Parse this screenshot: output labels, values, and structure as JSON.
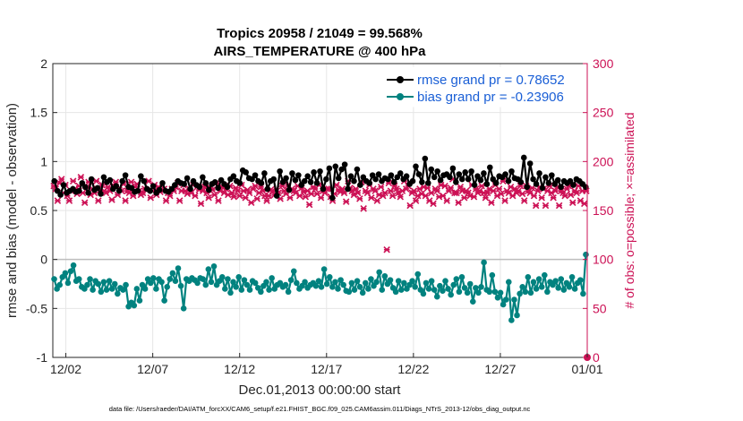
{
  "chart_data": {
    "type": "line",
    "title_line1": "Tropics 20958 / 21049 = 99.568%",
    "title_line2": "AIRS_TEMPERATURE @ 400 hPa",
    "xlabel": "Dec.01,2013 00:00:00 start",
    "ylabel_left": "rmse and bias (model - observation)",
    "ylabel_right": "# of obs: o=possible; ×=assimilated",
    "footnote": "data file: /Users/raeder/DAI/ATM_forcXX/CAM6_setup/f.e21.FHIST_BGC.f09_025.CAM6assim.011/Diags_NTrS_2013-12/obs_diag_output.nc",
    "x_range": [
      0.25,
      31.0
    ],
    "x_ticks": [
      {
        "value": 1.0,
        "label": "12/02"
      },
      {
        "value": 6.0,
        "label": "12/07"
      },
      {
        "value": 11.0,
        "label": "12/12"
      },
      {
        "value": 16.0,
        "label": "12/17"
      },
      {
        "value": 21.0,
        "label": "12/22"
      },
      {
        "value": 26.0,
        "label": "12/27"
      },
      {
        "value": 31.0,
        "label": "01/01"
      }
    ],
    "ylim_left": [
      -1,
      2
    ],
    "y_ticks_left": [
      {
        "value": -1,
        "label": "-1"
      },
      {
        "value": -0.5,
        "label": "-0.5"
      },
      {
        "value": 0,
        "label": "0"
      },
      {
        "value": 0.5,
        "label": "0.5"
      },
      {
        "value": 1,
        "label": "1"
      },
      {
        "value": 1.5,
        "label": "1.5"
      },
      {
        "value": 2,
        "label": "2"
      }
    ],
    "ylim_right": [
      0,
      300
    ],
    "y_ticks_right": [
      {
        "value": 0,
        "label": "0"
      },
      {
        "value": 50,
        "label": "50"
      },
      {
        "value": 100,
        "label": "100"
      },
      {
        "value": 150,
        "label": "150"
      },
      {
        "value": 200,
        "label": "200"
      },
      {
        "value": 250,
        "label": "250"
      },
      {
        "value": 300,
        "label": "300"
      }
    ],
    "grid": true,
    "legend_position": "top-right",
    "series": [
      {
        "name": "rmse grand pr = 0.78652",
        "axis": "left",
        "color": "#000000",
        "values": [
          0.8,
          0.7,
          0.66,
          0.76,
          0.68,
          0.7,
          0.72,
          0.69,
          0.7,
          0.78,
          0.74,
          0.68,
          0.82,
          0.71,
          0.73,
          0.67,
          0.84,
          0.79,
          0.81,
          0.72,
          0.75,
          0.7,
          0.8,
          0.86,
          0.74,
          0.73,
          0.69,
          0.7,
          0.85,
          0.8,
          0.72,
          0.7,
          0.75,
          0.68,
          0.71,
          0.78,
          0.7,
          0.69,
          0.72,
          0.76,
          0.8,
          0.78,
          0.77,
          0.83,
          0.72,
          0.8,
          0.76,
          0.74,
          0.84,
          0.78,
          0.71,
          0.77,
          0.79,
          0.73,
          0.81,
          0.77,
          0.74,
          0.82,
          0.85,
          0.8,
          0.78,
          0.91,
          0.89,
          0.83,
          0.82,
          0.86,
          0.8,
          0.78,
          0.88,
          0.72,
          0.8,
          0.82,
          0.65,
          0.9,
          0.79,
          0.83,
          0.71,
          0.88,
          0.81,
          0.86,
          0.76,
          0.8,
          0.85,
          0.79,
          0.89,
          0.78,
          0.9,
          0.72,
          0.82,
          0.93,
          0.63,
          0.95,
          0.83,
          0.92,
          0.97,
          0.72,
          0.85,
          0.8,
          0.92,
          0.76,
          0.84,
          0.8,
          0.78,
          0.86,
          0.82,
          0.87,
          0.8,
          0.83,
          0.82,
          0.86,
          0.79,
          0.84,
          0.88,
          0.82,
          0.85,
          0.77,
          0.8,
          0.95,
          0.87,
          0.79,
          1.03,
          0.78,
          0.92,
          0.84,
          0.9,
          0.81,
          0.86,
          0.87,
          0.84,
          0.93,
          0.79,
          0.87,
          0.82,
          0.89,
          0.82,
          0.9,
          0.76,
          0.85,
          0.81,
          0.88,
          0.77,
          0.94,
          0.82,
          0.78,
          0.85,
          0.84,
          0.87,
          0.8,
          0.9,
          0.83,
          0.82,
          0.79,
          1.04,
          0.74,
          0.98,
          0.82,
          0.77,
          0.88,
          0.73,
          0.84,
          0.78,
          0.86,
          0.77,
          0.81,
          0.74,
          0.8,
          0.78,
          0.8,
          0.76,
          0.82,
          0.8,
          0.77,
          0.74
        ]
      },
      {
        "name": "bias grand pr = -0.23906",
        "axis": "left",
        "color": "#00827f",
        "values": [
          -0.2,
          -0.3,
          -0.26,
          -0.18,
          -0.14,
          -0.24,
          -0.12,
          -0.06,
          -0.22,
          -0.2,
          -0.28,
          -0.3,
          -0.26,
          -0.2,
          -0.31,
          -0.22,
          -0.25,
          -0.33,
          -0.23,
          -0.31,
          -0.22,
          -0.3,
          -0.25,
          -0.35,
          -0.29,
          -0.31,
          -0.26,
          -0.48,
          -0.44,
          -0.47,
          -0.3,
          -0.42,
          -0.26,
          -0.3,
          -0.2,
          -0.24,
          -0.19,
          -0.3,
          -0.2,
          -0.23,
          -0.42,
          -0.28,
          -0.2,
          -0.14,
          -0.22,
          -0.09,
          -0.27,
          -0.5,
          -0.2,
          -0.22,
          -0.19,
          -0.21,
          -0.24,
          -0.19,
          -0.2,
          -0.26,
          -0.1,
          -0.23,
          -0.07,
          -0.26,
          -0.22,
          -0.18,
          -0.3,
          -0.2,
          -0.34,
          -0.23,
          -0.28,
          -0.18,
          -0.31,
          -0.21,
          -0.26,
          -0.31,
          -0.22,
          -0.24,
          -0.29,
          -0.33,
          -0.27,
          -0.23,
          -0.31,
          -0.19,
          -0.3,
          -0.26,
          -0.24,
          -0.28,
          -0.26,
          -0.33,
          -0.21,
          -0.12,
          -0.24,
          -0.3,
          -0.27,
          -0.23,
          -0.29,
          -0.26,
          -0.24,
          -0.27,
          -0.22,
          -0.28,
          -0.1,
          -0.25,
          -0.18,
          -0.28,
          -0.23,
          -0.3,
          -0.21,
          -0.26,
          -0.32,
          -0.33,
          -0.24,
          -0.31,
          -0.22,
          -0.28,
          -0.34,
          -0.24,
          -0.3,
          -0.2,
          -0.27,
          -0.23,
          -0.13,
          -0.31,
          -0.17,
          -0.25,
          -0.21,
          -0.29,
          -0.33,
          -0.22,
          -0.31,
          -0.24,
          -0.3,
          -0.26,
          -0.22,
          -0.28,
          -0.15,
          -0.31,
          -0.35,
          -0.24,
          -0.3,
          -0.22,
          -0.31,
          -0.38,
          -0.27,
          -0.32,
          -0.22,
          -0.3,
          -0.36,
          -0.26,
          -0.2,
          -0.33,
          -0.18,
          -0.29,
          -0.34,
          -0.25,
          -0.43,
          -0.29,
          -0.34,
          -0.28,
          -0.03,
          -0.31,
          -0.33,
          -0.16,
          -0.33,
          -0.39,
          -0.34,
          -0.46,
          -0.41,
          -0.23,
          -0.62,
          -0.41,
          -0.57,
          -0.35,
          -0.28,
          -0.33,
          -0.18,
          -0.34,
          -0.23,
          -0.3,
          -0.2,
          -0.28,
          -0.16,
          -0.33,
          -0.23,
          -0.26,
          -0.22,
          -0.29,
          -0.2,
          -0.31,
          -0.24,
          -0.28,
          -0.18,
          -0.3,
          -0.24,
          -0.21,
          -0.35,
          0.05
        ]
      },
      {
        "name": "assimilated",
        "axis": "right",
        "color": "#cc1155",
        "marker": "x",
        "values": [
          175,
          172,
          160,
          178,
          182,
          168,
          176,
          165,
          160,
          170,
          180,
          172,
          167,
          175,
          184,
          168,
          158,
          174,
          179,
          166,
          172,
          168,
          180,
          160,
          171,
          176,
          170,
          168,
          174,
          170,
          161,
          175,
          179,
          166,
          173,
          170,
          177,
          160,
          170,
          168,
          179,
          165,
          174,
          177,
          170,
          166,
          168,
          172,
          171,
          180,
          163,
          170,
          176,
          166,
          174,
          169,
          171,
          172,
          160,
          168,
          165,
          172,
          170,
          174,
          178,
          160,
          170,
          176,
          170,
          167,
          172,
          168,
          176,
          165,
          174,
          171,
          157,
          170,
          174,
          168,
          163,
          173,
          171,
          166,
          178,
          160,
          170,
          174,
          168,
          172,
          166,
          175,
          168,
          164,
          173,
          170,
          165,
          176,
          170,
          163,
          171,
          168,
          158,
          172,
          175,
          162,
          168,
          174,
          170,
          165,
          160,
          165,
          171,
          170,
          166,
          172,
          168,
          162,
          175,
          170,
          167,
          176,
          163,
          172,
          170,
          168,
          175,
          165,
          173,
          169,
          164,
          170,
          156,
          167,
          174,
          172,
          167,
          176,
          163,
          170,
          168,
          172,
          172,
          164,
          160,
          167,
          176,
          171,
          169,
          172,
          168,
          159,
          180,
          173,
          170,
          166,
          172,
          168,
          162,
          179,
          152,
          170,
          168,
          176,
          163,
          172,
          170,
          160,
          166,
          174,
          165,
          168,
          110,
          178,
          170,
          165,
          175,
          172,
          168,
          164,
          170,
          180,
          172,
          175,
          155,
          168,
          170,
          160,
          165,
          172,
          167,
          174,
          165,
          173,
          160,
          168,
          157,
          172,
          170,
          164,
          176,
          165,
          175,
          160,
          170,
          173,
          182,
          168,
          168,
          158,
          174,
          170,
          163,
          170,
          168,
          165,
          176,
          164,
          172,
          168,
          170,
          175,
          168,
          163,
          168,
          172,
          158,
          170,
          176,
          165,
          172,
          167,
          180,
          160,
          170,
          168,
          174,
          165,
          172,
          168,
          170,
          175,
          167,
          160,
          175,
          170,
          168,
          173,
          165,
          155,
          170,
          174,
          163,
          172,
          155,
          170,
          175,
          168,
          163,
          170,
          174,
          155,
          170,
          168,
          165,
          172,
          175,
          166,
          158,
          170,
          168,
          175,
          160,
          170,
          157,
          170
        ]
      }
    ]
  }
}
